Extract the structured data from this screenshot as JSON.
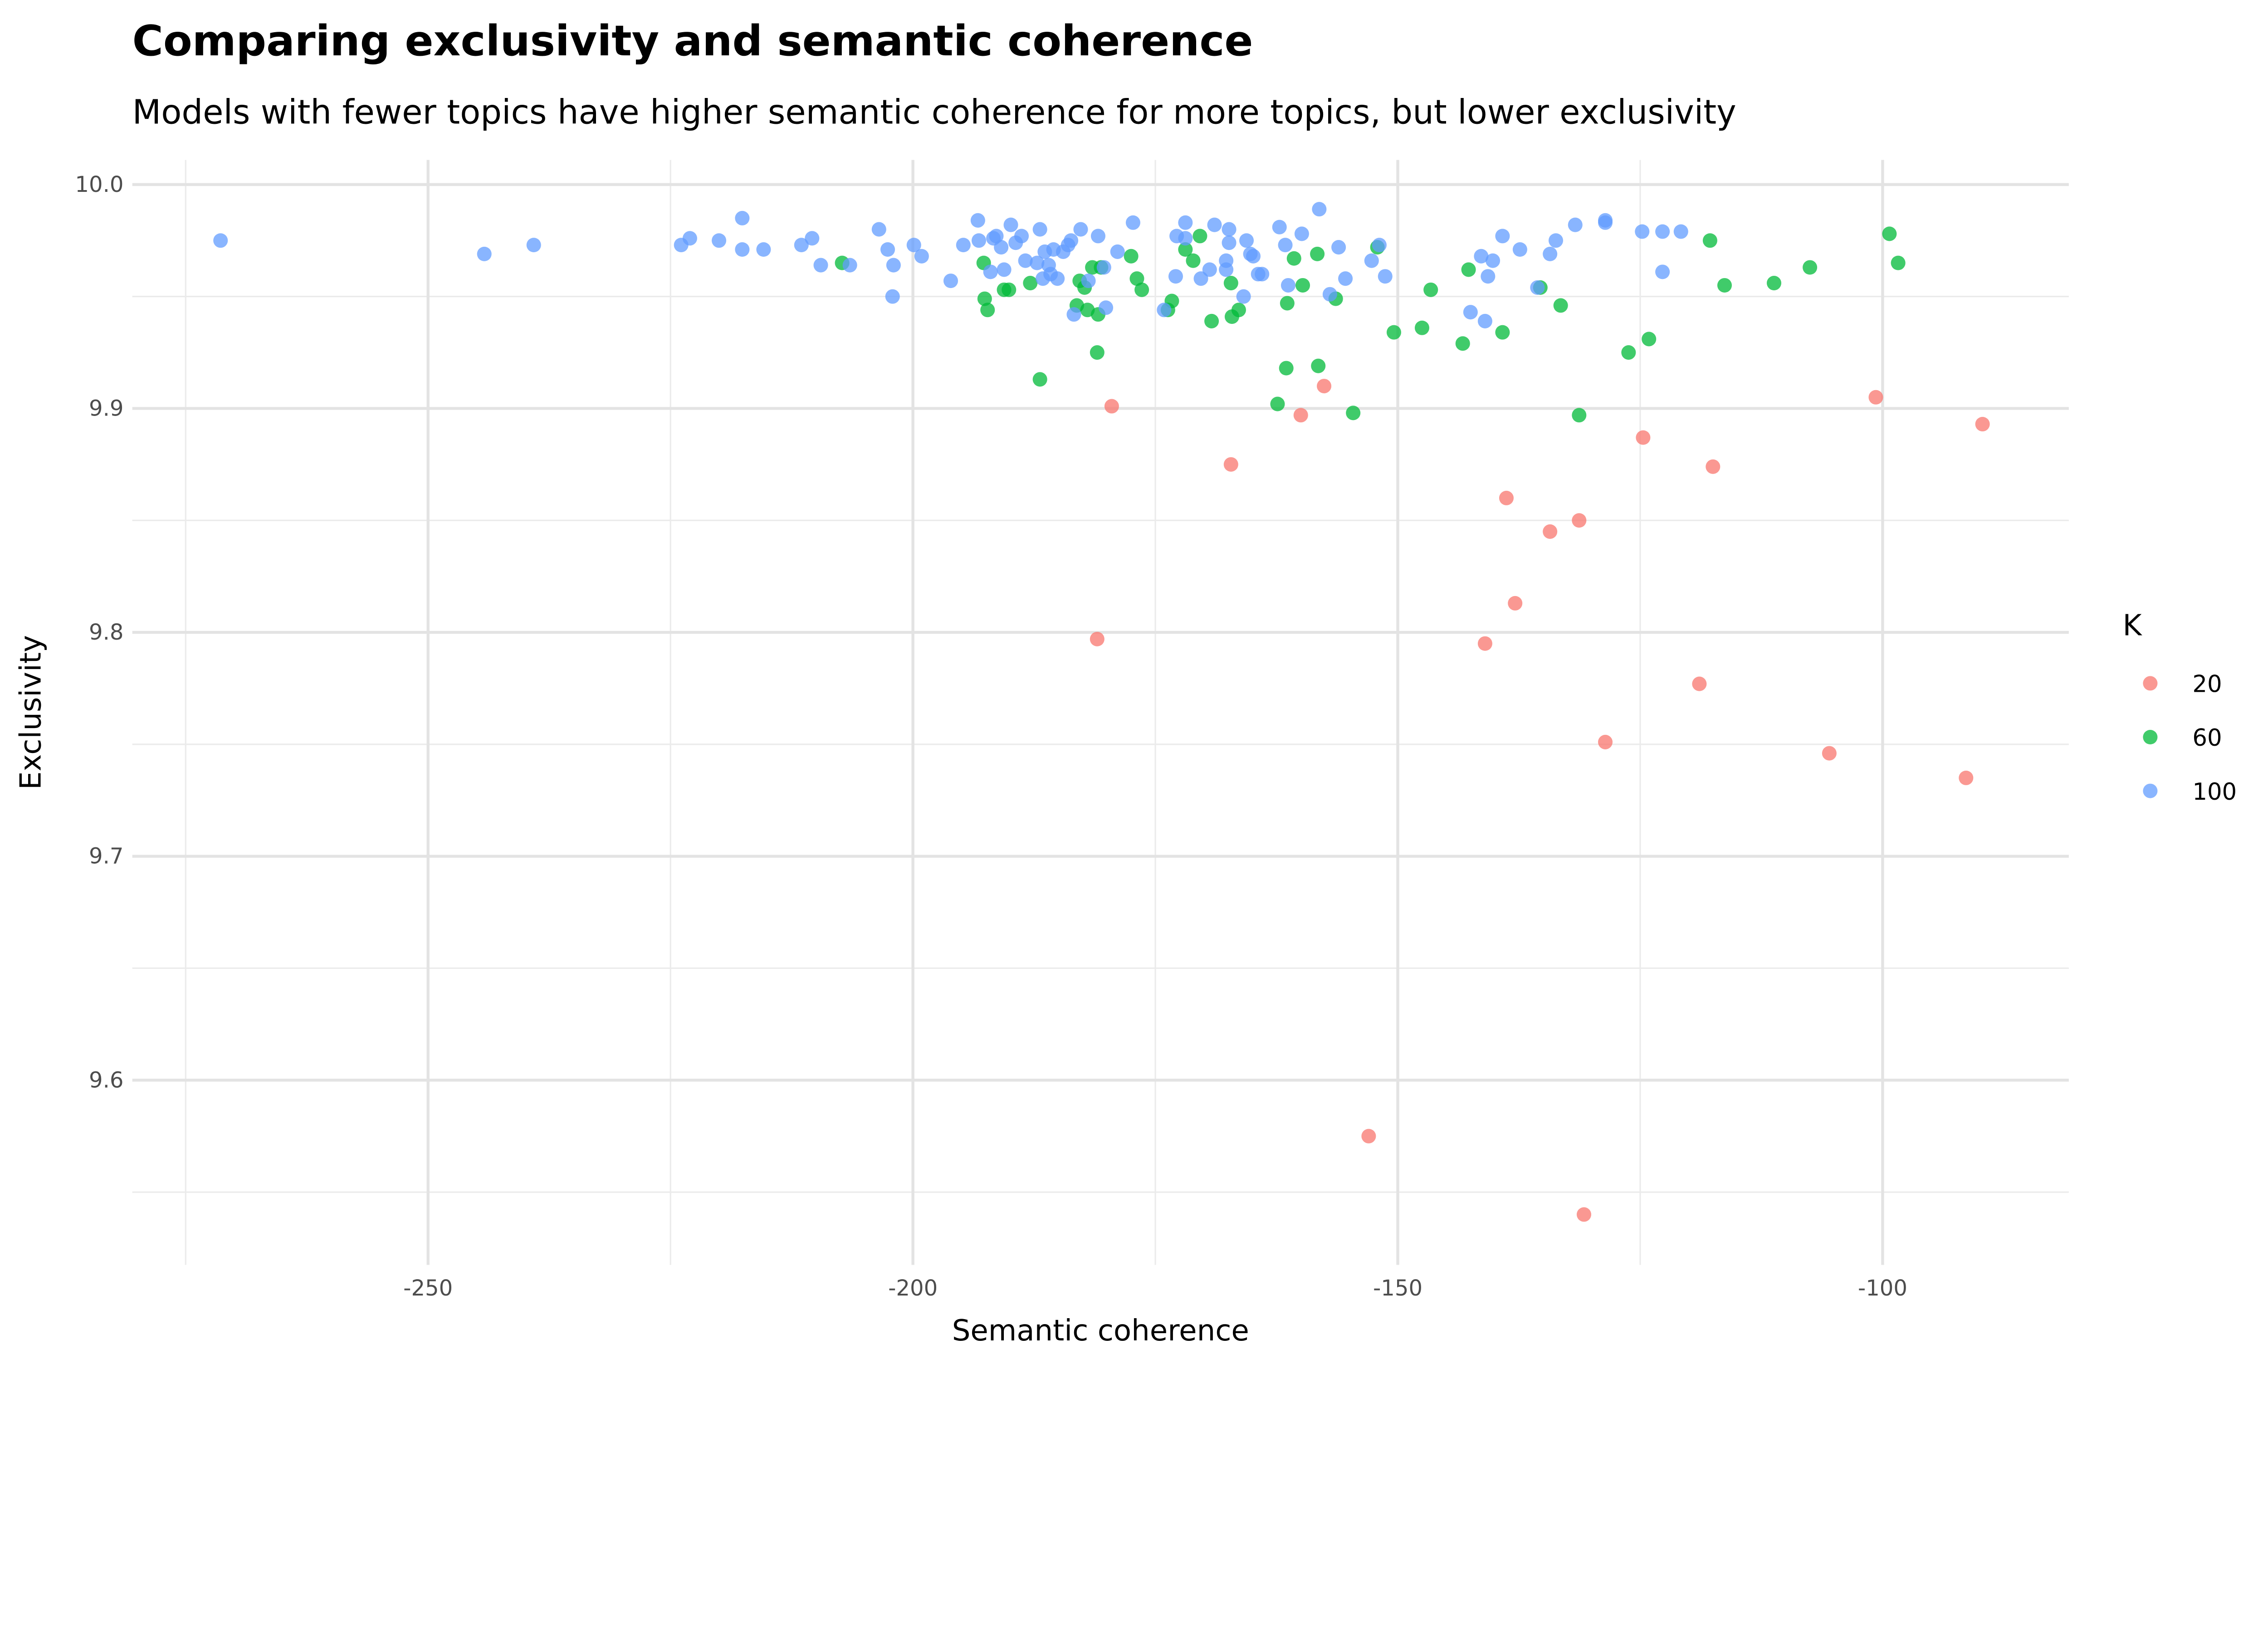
{
  "chart_data": {
    "type": "scatter",
    "title": "Comparing exclusivity and semantic coherence",
    "subtitle": "Models with fewer topics have higher semantic coherence for more topics, but lower exclusivity",
    "xlabel": "Semantic coherence",
    "ylabel": "Exclusivity",
    "xlim": [
      -280.5,
      -80.8
    ],
    "ylim": [
      9.5175,
      10.011
    ],
    "xticks": [
      -250,
      -200,
      -150,
      -100
    ],
    "xtick_labels": [
      "-250",
      "-200",
      "-150",
      "-100"
    ],
    "yticks": [
      9.6,
      9.7,
      9.8,
      9.9,
      10.0
    ],
    "ytick_labels": [
      "9.6",
      "9.7",
      "9.8",
      "9.9",
      "10.0"
    ],
    "grid": true,
    "legend": {
      "title": "K",
      "placement": "right"
    },
    "series": [
      {
        "name": "20",
        "color": "#F8766D",
        "points": [
          [
            -179.5,
            9.901
          ],
          [
            -157.6,
            9.91
          ],
          [
            -160.0,
            9.897
          ],
          [
            -167.2,
            9.875
          ],
          [
            -100.7,
            9.905
          ],
          [
            -89.7,
            9.893
          ],
          [
            -124.7,
            9.887
          ],
          [
            -117.5,
            9.874
          ],
          [
            -138.8,
            9.86
          ],
          [
            -131.3,
            9.85
          ],
          [
            -134.3,
            9.845
          ],
          [
            -137.9,
            9.813
          ],
          [
            -141.0,
            9.795
          ],
          [
            -181.0,
            9.797
          ],
          [
            -118.9,
            9.777
          ],
          [
            -128.6,
            9.751
          ],
          [
            -105.5,
            9.746
          ],
          [
            -91.4,
            9.735
          ],
          [
            -153.0,
            9.575
          ],
          [
            -130.8,
            9.54
          ]
        ]
      },
      {
        "name": "60",
        "color": "#00BA38",
        "points": [
          [
            -207.3,
            9.965
          ],
          [
            -192.7,
            9.965
          ],
          [
            -192.6,
            9.949
          ],
          [
            -192.3,
            9.944
          ],
          [
            -190.6,
            9.953
          ],
          [
            -190.1,
            9.953
          ],
          [
            -187.9,
            9.956
          ],
          [
            -186.9,
            9.913
          ],
          [
            -183.1,
            9.946
          ],
          [
            -182.8,
            9.957
          ],
          [
            -182.3,
            9.954
          ],
          [
            -182.0,
            9.944
          ],
          [
            -181.5,
            9.963
          ],
          [
            -181.0,
            9.925
          ],
          [
            -180.9,
            9.942
          ],
          [
            -180.6,
            9.963
          ],
          [
            -177.5,
            9.968
          ],
          [
            -176.9,
            9.958
          ],
          [
            -176.4,
            9.953
          ],
          [
            -173.7,
            9.944
          ],
          [
            -173.3,
            9.948
          ],
          [
            -171.9,
            9.971
          ],
          [
            -171.1,
            9.966
          ],
          [
            -170.4,
            9.977
          ],
          [
            -169.2,
            9.939
          ],
          [
            -167.1,
            9.941
          ],
          [
            -167.2,
            9.956
          ],
          [
            -166.4,
            9.944
          ],
          [
            -162.4,
            9.902
          ],
          [
            -161.5,
            9.918
          ],
          [
            -161.4,
            9.947
          ],
          [
            -160.7,
            9.967
          ],
          [
            -159.8,
            9.955
          ],
          [
            -158.3,
            9.969
          ],
          [
            -158.2,
            9.919
          ],
          [
            -156.4,
            9.949
          ],
          [
            -154.6,
            9.898
          ],
          [
            -152.1,
            9.972
          ],
          [
            -150.4,
            9.934
          ],
          [
            -147.5,
            9.936
          ],
          [
            -146.6,
            9.953
          ],
          [
            -143.3,
            9.929
          ],
          [
            -142.7,
            9.962
          ],
          [
            -139.2,
            9.934
          ],
          [
            -135.3,
            9.954
          ],
          [
            -133.2,
            9.946
          ],
          [
            -131.3,
            9.897
          ],
          [
            -126.2,
            9.925
          ],
          [
            -124.1,
            9.931
          ],
          [
            -117.8,
            9.975
          ],
          [
            -116.3,
            9.955
          ],
          [
            -111.2,
            9.956
          ],
          [
            -107.5,
            9.963
          ],
          [
            -99.3,
            9.978
          ],
          [
            -98.4,
            9.965
          ]
        ]
      },
      {
        "name": "100",
        "color": "#619CFF",
        "points": [
          [
            -271.4,
            9.975
          ],
          [
            -244.2,
            9.969
          ],
          [
            -239.1,
            9.973
          ],
          [
            -223.9,
            9.973
          ],
          [
            -223.0,
            9.976
          ],
          [
            -220.0,
            9.975
          ],
          [
            -217.6,
            9.985
          ],
          [
            -217.6,
            9.971
          ],
          [
            -215.4,
            9.971
          ],
          [
            -211.5,
            9.973
          ],
          [
            -210.4,
            9.976
          ],
          [
            -209.5,
            9.964
          ],
          [
            -206.5,
            9.964
          ],
          [
            -203.5,
            9.98
          ],
          [
            -202.6,
            9.971
          ],
          [
            -202.1,
            9.95
          ],
          [
            -202.0,
            9.964
          ],
          [
            -199.9,
            9.973
          ],
          [
            -199.1,
            9.968
          ],
          [
            -196.1,
            9.957
          ],
          [
            -194.8,
            9.973
          ],
          [
            -193.3,
            9.984
          ],
          [
            -193.2,
            9.975
          ],
          [
            -192.0,
            9.961
          ],
          [
            -191.7,
            9.976
          ],
          [
            -191.4,
            9.977
          ],
          [
            -190.9,
            9.972
          ],
          [
            -190.6,
            9.962
          ],
          [
            -189.9,
            9.982
          ],
          [
            -189.4,
            9.974
          ],
          [
            -188.8,
            9.977
          ],
          [
            -188.4,
            9.966
          ],
          [
            -187.2,
            9.965
          ],
          [
            -186.9,
            9.98
          ],
          [
            -186.6,
            9.958
          ],
          [
            -186.4,
            9.97
          ],
          [
            -186.0,
            9.964
          ],
          [
            -185.8,
            9.96
          ],
          [
            -185.5,
            9.971
          ],
          [
            -185.1,
            9.958
          ],
          [
            -184.5,
            9.97
          ],
          [
            -184.0,
            9.973
          ],
          [
            -183.7,
            9.975
          ],
          [
            -183.4,
            9.942
          ],
          [
            -182.7,
            9.98
          ],
          [
            -181.9,
            9.957
          ],
          [
            -180.9,
            9.977
          ],
          [
            -180.3,
            9.963
          ],
          [
            -180.1,
            9.945
          ],
          [
            -178.9,
            9.97
          ],
          [
            -177.3,
            9.983
          ],
          [
            -174.1,
            9.944
          ],
          [
            -172.9,
            9.959
          ],
          [
            -172.8,
            9.977
          ],
          [
            -171.9,
            9.983
          ],
          [
            -171.9,
            9.976
          ],
          [
            -170.3,
            9.958
          ],
          [
            -169.4,
            9.962
          ],
          [
            -168.9,
            9.982
          ],
          [
            -167.7,
            9.966
          ],
          [
            -167.7,
            9.962
          ],
          [
            -167.4,
            9.98
          ],
          [
            -167.4,
            9.974
          ],
          [
            -165.9,
            9.95
          ],
          [
            -165.6,
            9.975
          ],
          [
            -165.2,
            9.969
          ],
          [
            -164.9,
            9.968
          ],
          [
            -164.4,
            9.96
          ],
          [
            -164.0,
            9.96
          ],
          [
            -162.2,
            9.981
          ],
          [
            -161.6,
            9.973
          ],
          [
            -161.3,
            9.955
          ],
          [
            -159.9,
            9.978
          ],
          [
            -158.1,
            9.989
          ],
          [
            -157.0,
            9.951
          ],
          [
            -156.1,
            9.972
          ],
          [
            -155.4,
            9.958
          ],
          [
            -152.7,
            9.966
          ],
          [
            -151.9,
            9.973
          ],
          [
            -151.3,
            9.959
          ],
          [
            -142.5,
            9.943
          ],
          [
            -141.4,
            9.968
          ],
          [
            -141.0,
            9.939
          ],
          [
            -140.7,
            9.959
          ],
          [
            -140.2,
            9.966
          ],
          [
            -139.2,
            9.977
          ],
          [
            -137.4,
            9.971
          ],
          [
            -135.6,
            9.954
          ],
          [
            -134.3,
            9.969
          ],
          [
            -133.7,
            9.975
          ],
          [
            -131.7,
            9.982
          ],
          [
            -128.6,
            9.984
          ],
          [
            -128.6,
            9.983
          ],
          [
            -124.8,
            9.979
          ],
          [
            -122.7,
            9.979
          ],
          [
            -122.7,
            9.961
          ],
          [
            -120.8,
            9.979
          ]
        ]
      }
    ]
  }
}
